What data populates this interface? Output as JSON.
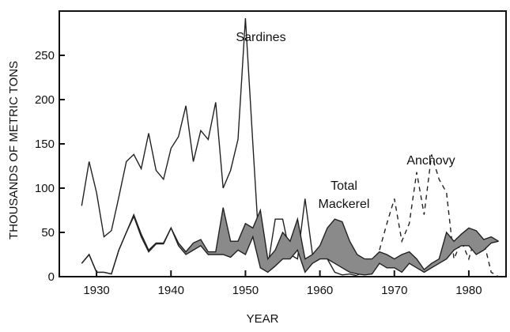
{
  "chart_data": {
    "type": "line",
    "x_label": "YEAR",
    "y_label": "THOUSANDS OF METRIC TONS",
    "x": [
      1928,
      1929,
      1930,
      1931,
      1932,
      1933,
      1934,
      1935,
      1936,
      1937,
      1938,
      1939,
      1940,
      1941,
      1942,
      1943,
      1944,
      1945,
      1946,
      1947,
      1948,
      1949,
      1950,
      1951,
      1952,
      1953,
      1954,
      1955,
      1956,
      1957,
      1958,
      1959,
      1960,
      1961,
      1962,
      1963,
      1964,
      1965,
      1966,
      1967,
      1968,
      1969,
      1970,
      1971,
      1972,
      1973,
      1974,
      1975,
      1976,
      1977,
      1978,
      1979,
      1980,
      1981,
      1982,
      1983,
      1984
    ],
    "series": [
      {
        "name": "Sardines",
        "color": "#222222",
        "style": "solid",
        "values": [
          80,
          130,
          95,
          45,
          52,
          90,
          130,
          138,
          122,
          162,
          120,
          110,
          145,
          158,
          193,
          130,
          165,
          155,
          197,
          100,
          120,
          155,
          292,
          150,
          10,
          12,
          65,
          65,
          25,
          20,
          88,
          25,
          30,
          20,
          5,
          2,
          3,
          1,
          null,
          null,
          null,
          null,
          null,
          null,
          null,
          null,
          null,
          null,
          null,
          null,
          null,
          null,
          null,
          null,
          null,
          null,
          null
        ]
      },
      {
        "name": "Anchovy",
        "color": "#222222",
        "style": "dashed",
        "values": [
          null,
          null,
          null,
          null,
          null,
          null,
          null,
          null,
          null,
          null,
          null,
          null,
          null,
          null,
          null,
          null,
          null,
          null,
          null,
          null,
          null,
          null,
          null,
          null,
          null,
          null,
          null,
          null,
          null,
          null,
          null,
          null,
          null,
          null,
          null,
          null,
          null,
          2,
          5,
          15,
          30,
          60,
          88,
          40,
          60,
          118,
          70,
          138,
          110,
          95,
          20,
          40,
          20,
          50,
          40,
          5,
          0
        ]
      },
      {
        "name": "Total Mackerel",
        "color": "#222222",
        "style": "band",
        "band_color": "#8a8a8a",
        "values": [
          15,
          25,
          5,
          5,
          3,
          30,
          50,
          70,
          48,
          30,
          38,
          38,
          55,
          38,
          28,
          38,
          42,
          28,
          28,
          78,
          40,
          40,
          60,
          55,
          75,
          20,
          30,
          50,
          40,
          65,
          20,
          25,
          35,
          55,
          65,
          62,
          40,
          25,
          20,
          20,
          28,
          25,
          20,
          25,
          28,
          20,
          8,
          15,
          20,
          50,
          40,
          48,
          55,
          52,
          42,
          45,
          40
        ],
        "lower": [
          15,
          25,
          5,
          5,
          3,
          30,
          50,
          68,
          45,
          28,
          37,
          37,
          55,
          35,
          25,
          30,
          35,
          25,
          25,
          25,
          22,
          30,
          25,
          45,
          10,
          5,
          12,
          20,
          20,
          30,
          5,
          15,
          20,
          20,
          15,
          10,
          5,
          3,
          2,
          3,
          15,
          10,
          10,
          5,
          15,
          10,
          5,
          10,
          15,
          20,
          30,
          35,
          35,
          25,
          30,
          38,
          40
        ]
      }
    ],
    "xlim": [
      1925,
      1985
    ],
    "xticks": [
      1930,
      1940,
      1950,
      1960,
      1970,
      1980
    ],
    "ylim": [
      0,
      300
    ],
    "yticks": [
      0,
      50,
      100,
      150,
      200,
      250
    ]
  }
}
